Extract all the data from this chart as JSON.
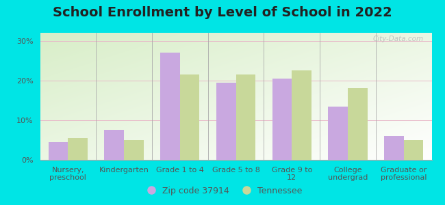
{
  "title": "School Enrollment by Level of School in 2022",
  "categories": [
    "Nursery,\npreschool",
    "Kindergarten",
    "Grade 1 to 4",
    "Grade 5 to 8",
    "Grade 9 to\n12",
    "College\nundergrad",
    "Graduate or\nprofessional"
  ],
  "zip_values": [
    4.5,
    7.5,
    27.0,
    19.5,
    20.5,
    13.5,
    6.0
  ],
  "tn_values": [
    5.5,
    5.0,
    21.5,
    21.5,
    22.5,
    18.0,
    5.0
  ],
  "zip_color": "#c9a8e0",
  "tn_color": "#c8d89a",
  "background_outer": "#00e5e5",
  "ylim": [
    0,
    32
  ],
  "yticks": [
    0,
    10,
    20,
    30
  ],
  "ytick_labels": [
    "0%",
    "10%",
    "20%",
    "30%"
  ],
  "legend_zip_label": "Zip code 37914",
  "legend_tn_label": "Tennessee",
  "watermark": "City-Data.com",
  "title_fontsize": 14,
  "tick_fontsize": 8,
  "legend_fontsize": 9
}
